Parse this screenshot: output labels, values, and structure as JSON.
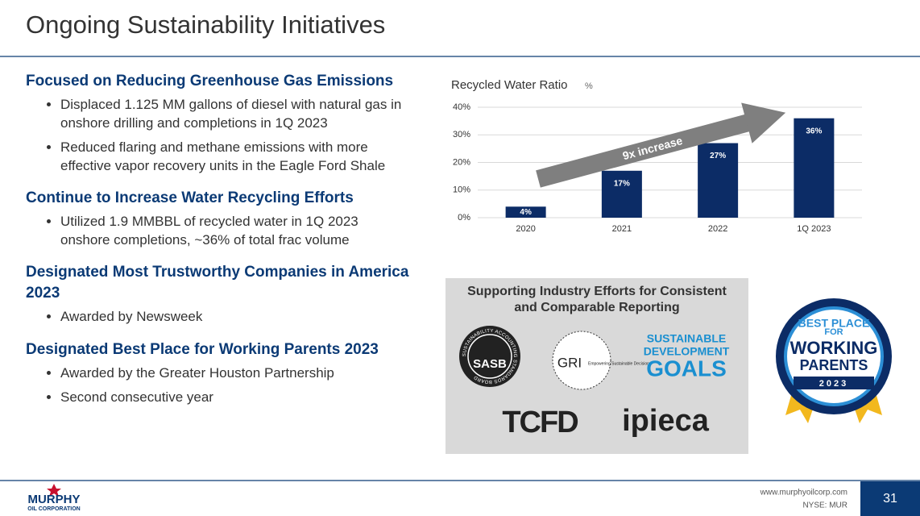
{
  "header": {
    "title": "Ongoing Sustainability Initiatives"
  },
  "sections": [
    {
      "heading": "Focused on Reducing Greenhouse Gas Emissions",
      "bullets": [
        "Displaced 1.125 MM gallons of diesel with natural gas in onshore drilling and completions in 1Q 2023",
        "Reduced flaring and methane emissions with more effective vapor recovery units in the Eagle Ford Shale"
      ]
    },
    {
      "heading": "Continue to Increase Water Recycling Efforts",
      "bullets": [
        "Utilized 1.9 MMBBL of recycled water in 1Q 2023 onshore completions, ~36% of total frac volume"
      ]
    },
    {
      "heading": "Designated Most Trustworthy Companies in America 2023",
      "bullets": [
        "Awarded by Newsweek"
      ]
    },
    {
      "heading": "Designated Best Place for Working Parents 2023",
      "bullets": [
        "Awarded by the Greater Houston Partnership",
        "Second consecutive year"
      ]
    }
  ],
  "chart_data": {
    "type": "bar",
    "title": "Recycled Water Ratio",
    "unit": "%",
    "categories": [
      "2020",
      "2021",
      "2022",
      "1Q 2023"
    ],
    "values": [
      4,
      17,
      27,
      36
    ],
    "value_labels": [
      "4%",
      "17%",
      "27%",
      "36%"
    ],
    "color": "#0c2c66",
    "ylim": [
      0,
      40
    ],
    "yticks": [
      {
        "value": 0,
        "label": "0%"
      },
      {
        "value": 10,
        "label": "10%"
      },
      {
        "value": 20,
        "label": "20%"
      },
      {
        "value": 30,
        "label": "30%"
      },
      {
        "value": 40,
        "label": "40%"
      }
    ],
    "grid": true,
    "annotation": "9x increase"
  },
  "reporting": {
    "title": "Supporting Industry Efforts for Consistent and Comparable Reporting",
    "sasb": "SASB",
    "sasb_ring": "SUSTAINABILITY ACCOUNTING STANDARDS BOARD",
    "gri": "GRI",
    "gri_sub": "Empowering Sustainable Decisions",
    "sdg": [
      "SUSTAINABLE",
      "DEVELOPMENT",
      "GOALS"
    ],
    "tcfd": "TCFD",
    "ipieca": "ipieca"
  },
  "badge": {
    "lines": [
      "BEST PLACE",
      "FOR",
      "WORKING",
      "PARENTS"
    ],
    "year": "2023"
  },
  "footer": {
    "company": "MURPHY",
    "company_sub": "OIL CORPORATION",
    "website": "www.murphyoilcorp.com",
    "ticker": "NYSE: MUR",
    "page": "31"
  }
}
